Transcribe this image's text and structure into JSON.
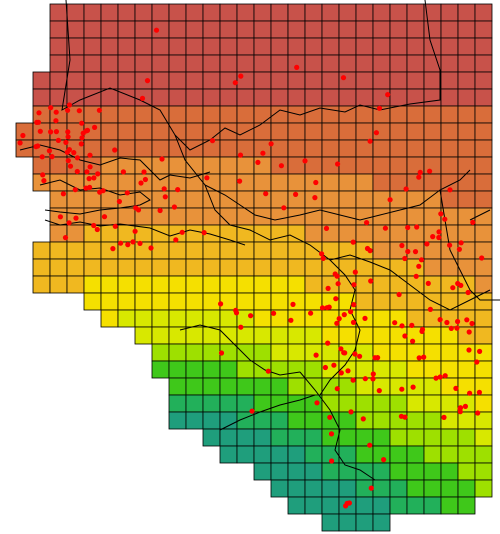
{
  "map": {
    "colors": {
      "background": "#ffffff",
      "grid_line": "#000000",
      "border_line": "#000000",
      "station": "#ff0000"
    },
    "legend_colors_high_to_low": [
      "#c8524a",
      "#d96d3a",
      "#e8923a",
      "#f0b820",
      "#f5e000",
      "#d8e800",
      "#9ee000",
      "#3fc81a",
      "#22b05a",
      "#1f9e7c"
    ],
    "stations_note": ""
  }
}
